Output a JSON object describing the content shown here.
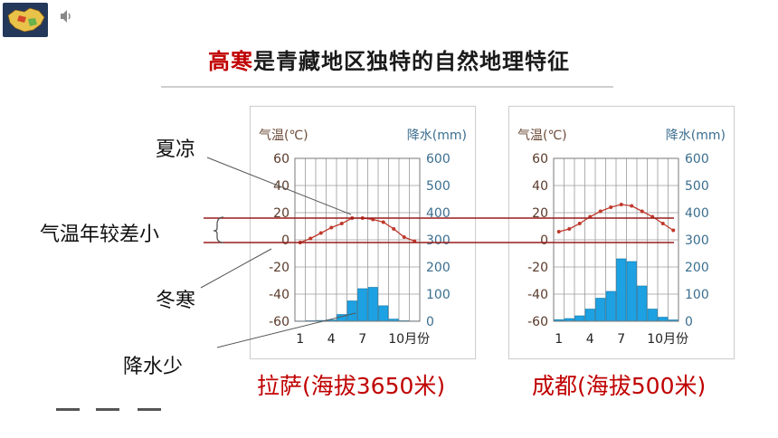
{
  "title": {
    "highlight": "高寒",
    "rest": "是青藏地区独特的自然地理特征"
  },
  "annotations": {
    "summer": "夏凉",
    "range": "气温年较差小",
    "winter": "冬寒",
    "rain": "降水少"
  },
  "colors": {
    "accent": "#c00000",
    "temp_curve": "#c0392b",
    "precip_bar": "#1da1e2",
    "axis_text": "#5a3a2a"
  },
  "chart_data": [
    {
      "type": "bar+line",
      "city_label": "拉萨(海拔3650米)",
      "left_axis_title": "气温(℃)",
      "right_axis_title": "降水(mm)",
      "x_ticks": [
        "1",
        "4",
        "7",
        "10月份"
      ],
      "months": [
        1,
        2,
        3,
        4,
        5,
        6,
        7,
        8,
        9,
        10,
        11,
        12
      ],
      "left_ticks": [
        "60",
        "40",
        "20",
        "0",
        "-20",
        "-40",
        "-60"
      ],
      "right_ticks": [
        "600",
        "500",
        "400",
        "300",
        "200",
        "100",
        "0"
      ],
      "ylim_temp": [
        -60,
        60
      ],
      "ylim_precip": [
        0,
        600
      ],
      "temperature": [
        -2,
        1,
        5,
        9,
        12,
        16,
        16,
        15,
        13,
        8,
        2,
        -1
      ],
      "precipitation": [
        1,
        2,
        3,
        5,
        25,
        75,
        120,
        125,
        57,
        8,
        2,
        1
      ]
    },
    {
      "type": "bar+line",
      "city_label": "成都(海拔500米)",
      "left_axis_title": "气温(℃)",
      "right_axis_title": "降水(mm)",
      "x_ticks": [
        "1",
        "4",
        "7",
        "10月份"
      ],
      "months": [
        1,
        2,
        3,
        4,
        5,
        6,
        7,
        8,
        9,
        10,
        11,
        12
      ],
      "left_ticks": [
        "60",
        "40",
        "20",
        "0",
        "-20",
        "-40",
        "-60"
      ],
      "right_ticks": [
        "600",
        "500",
        "400",
        "300",
        "200",
        "100",
        "0"
      ],
      "ylim_temp": [
        -60,
        60
      ],
      "ylim_precip": [
        0,
        600
      ],
      "temperature": [
        6,
        8,
        12,
        17,
        21,
        24,
        26,
        25,
        21,
        17,
        12,
        7
      ],
      "precipitation": [
        6,
        10,
        20,
        45,
        85,
        110,
        230,
        220,
        130,
        45,
        15,
        5
      ]
    }
  ]
}
